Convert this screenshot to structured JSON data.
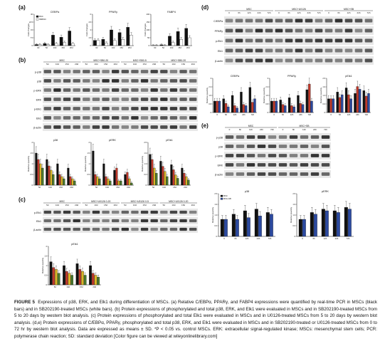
{
  "panels": {
    "a": {
      "label": "(a)",
      "charts": [
        {
          "title": "CEBPa",
          "ylabel": "Fold changes",
          "categories": [
            "0d",
            "5d",
            "10d",
            "15d",
            "20d"
          ],
          "legend": [
            "MSC",
            "SB/MSC"
          ],
          "ylim": [
            0,
            30
          ]
        },
        {
          "title": "PPARy",
          "ylabel": "Fold changes",
          "categories": [
            "0d",
            "5d",
            "10d",
            "15d",
            "20d"
          ],
          "ylim": [
            0,
            6
          ]
        },
        {
          "title": "FABP4",
          "ylabel": "Fold changes",
          "categories": [
            "0d",
            "5d",
            "10d",
            "15d",
            "20d"
          ],
          "ylim": [
            0,
            200
          ]
        }
      ]
    },
    "b": {
      "label": "(b)",
      "groups": [
        "MSC",
        "MSC+SB0-20",
        "MSC+SB0-5",
        "MSC+SB0-20"
      ],
      "days": [
        "5d",
        "10d",
        "15d",
        "20d"
      ],
      "blots": [
        "p-p38",
        "p38",
        "p-ERK",
        "ERK",
        "p-Elk1",
        "Elk1",
        "β-actin"
      ],
      "quant_titles": [
        "p38",
        "pERK",
        "pElk1"
      ],
      "ylabel": "Relative quantity"
    },
    "c": {
      "label": "(c)",
      "groups": [
        "MSC",
        "MSC+U0126 0-20",
        "MSC+U0126 0-5",
        "MSC+U0126 0-20"
      ],
      "days": [
        "5d",
        "10d",
        "15d",
        "20d"
      ],
      "blots": [
        "p-Elk1",
        "Elk1",
        "β-actin"
      ],
      "quant_title": "pElk1",
      "ylabel": "Relative quantity"
    },
    "d": {
      "label": "(d)",
      "groups": [
        "MSC",
        "MSC+U0126",
        "MSC+SB"
      ],
      "times": [
        "0",
        "6h",
        "12h",
        "24h",
        "72h"
      ],
      "blots": [
        "C/EBPa",
        "PPARy",
        "p-Elk1",
        "Elk1",
        "β-actin"
      ],
      "quant_titles": [
        "CEBPa",
        "PPARy",
        "pElk1"
      ],
      "ylabel": "Relative quantity"
    },
    "e": {
      "label": "(e)",
      "groups": [
        "MSC",
        "MSC+SB"
      ],
      "times": [
        "0",
        "6h",
        "12h",
        "24h",
        "72h"
      ],
      "blots": [
        "p-p38",
        "p38",
        "p-ERK",
        "ERK",
        "β-actin"
      ],
      "quant_titles": [
        "p38",
        "pERK"
      ],
      "legend": [
        "MSC",
        "MSC+SB"
      ],
      "ylabel": "Relative quantity"
    }
  },
  "chart_data": [
    {
      "type": "bar",
      "title": "CEBPa",
      "categories": [
        "0d",
        "5d",
        "10d",
        "15d",
        "20d"
      ],
      "series": [
        {
          "name": "MSC",
          "values": [
            1,
            2,
            10,
            8,
            14
          ]
        },
        {
          "name": "SB/MSC",
          "values": [
            1,
            1,
            2,
            3,
            2
          ]
        }
      ],
      "ylim": [
        0,
        30
      ]
    },
    {
      "type": "bar",
      "title": "PPARy",
      "categories": [
        "0d",
        "5d",
        "10d",
        "15d",
        "20d"
      ],
      "series": [
        {
          "name": "MSC",
          "values": [
            1,
            1.2,
            3,
            2.5,
            3.5
          ]
        },
        {
          "name": "SB/MSC",
          "values": [
            1,
            0.5,
            1,
            1.2,
            2
          ]
        }
      ],
      "ylim": [
        0,
        6
      ]
    },
    {
      "type": "bar",
      "title": "FABP4",
      "categories": [
        "0d",
        "5d",
        "10d",
        "15d",
        "20d"
      ],
      "series": [
        {
          "name": "MSC",
          "values": [
            1,
            5,
            60,
            90,
            110
          ]
        },
        {
          "name": "SB/MSC",
          "values": [
            1,
            2,
            20,
            40,
            50
          ]
        }
      ],
      "ylim": [
        0,
        200
      ]
    },
    {
      "type": "bar",
      "title": "p38",
      "categories": [
        "5d",
        "10d",
        "15d",
        "20d"
      ],
      "series": [
        {
          "values": [
            1.5,
            1.2,
            1.0,
            0.8
          ]
        },
        {
          "values": [
            1.2,
            0.9,
            0.5,
            0.4
          ]
        },
        {
          "values": [
            1.0,
            0.7,
            0.4,
            0.3
          ]
        },
        {
          "values": [
            0.8,
            0.5,
            0.3,
            0.2
          ]
        }
      ],
      "ylim": [
        0,
        2
      ]
    },
    {
      "type": "bar",
      "title": "pERK",
      "categories": [
        "5d",
        "10d",
        "15d",
        "20d"
      ],
      "series": [
        {
          "values": [
            1.6,
            1.0,
            0.7,
            0.5
          ]
        },
        {
          "values": [
            0.5,
            0.4,
            0.8,
            0.6
          ]
        },
        {
          "values": [
            0.4,
            0.3,
            0.2,
            0.3
          ]
        },
        {
          "values": [
            0.3,
            0.2,
            0.2,
            0.1
          ]
        }
      ],
      "ylim": [
        0,
        2
      ]
    },
    {
      "type": "bar",
      "title": "pElk1",
      "categories": [
        "5d",
        "10d",
        "15d",
        "20d"
      ],
      "series": [
        {
          "values": [
            1.8,
            1.4,
            1.2,
            1.0
          ]
        },
        {
          "values": [
            1.5,
            1.1,
            0.9,
            0.7
          ]
        },
        {
          "values": [
            1.0,
            0.8,
            0.6,
            0.5
          ]
        },
        {
          "values": [
            0.7,
            0.5,
            0.4,
            0.3
          ]
        }
      ],
      "ylim": [
        0,
        2.5
      ]
    },
    {
      "type": "bar",
      "title": "pElk1",
      "categories": [
        "5d",
        "10d",
        "15d",
        "20d"
      ],
      "series": [
        {
          "values": [
            1.2,
            1.0,
            1.1,
            1.0
          ]
        },
        {
          "values": [
            0.9,
            0.7,
            0.8,
            0.6
          ]
        },
        {
          "values": [
            0.8,
            0.6,
            0.7,
            0.5
          ]
        },
        {
          "values": [
            0.6,
            0.5,
            0.5,
            0.4
          ]
        }
      ],
      "ylim": [
        0,
        2
      ]
    },
    {
      "type": "bar",
      "title": "CEBPa",
      "categories": [
        "0",
        "6h",
        "12h",
        "24h",
        "72h"
      ],
      "series": [
        {
          "values": [
            1,
            1.2,
            1.5,
            1.8,
            2.2
          ]
        },
        {
          "values": [
            1,
            0.8,
            0.6,
            0.7,
            0.9
          ]
        },
        {
          "values": [
            1,
            0.5,
            0.4,
            0.6,
            1.2
          ]
        }
      ],
      "ylim": [
        0,
        3
      ]
    },
    {
      "type": "bar",
      "title": "PPARy",
      "categories": [
        "0",
        "6h",
        "12h",
        "24h",
        "72h"
      ],
      "series": [
        {
          "values": [
            1,
            1.1,
            1.3,
            1.5,
            2.0
          ]
        },
        {
          "values": [
            1,
            0.7,
            0.6,
            0.8,
            2.5
          ]
        },
        {
          "values": [
            1,
            0.6,
            0.5,
            0.7,
            1.0
          ]
        }
      ],
      "ylim": [
        0,
        3
      ]
    },
    {
      "type": "bar",
      "title": "pElk1",
      "categories": [
        "0",
        "6h",
        "12h",
        "24h",
        "72h"
      ],
      "series": [
        {
          "values": [
            1,
            1.5,
            1.8,
            1.4,
            1.6
          ]
        },
        {
          "values": [
            1,
            1.1,
            1.3,
            1.9,
            1.2
          ]
        },
        {
          "values": [
            1,
            1.3,
            1.0,
            1.7,
            1.4
          ]
        }
      ],
      "ylim": [
        0,
        2.5
      ]
    },
    {
      "type": "bar",
      "title": "p38",
      "categories": [
        "0",
        "6h",
        "12h",
        "24h",
        "72h"
      ],
      "series": [
        {
          "name": "MSC",
          "values": [
            1,
            1.3,
            1.5,
            1.6,
            1.4
          ]
        },
        {
          "name": "MSC+SB",
          "values": [
            1,
            1.0,
            1.1,
            1.2,
            1.3
          ]
        }
      ],
      "ylim": [
        0,
        2.5
      ]
    },
    {
      "type": "bar",
      "title": "pERK",
      "categories": [
        "0",
        "6h",
        "12h",
        "24h",
        "72h"
      ],
      "series": [
        {
          "name": "MSC",
          "values": [
            1,
            1.4,
            1.6,
            1.5,
            1.7
          ]
        },
        {
          "name": "MSC+SB",
          "values": [
            1,
            1.3,
            1.5,
            1.4,
            1.6
          ]
        }
      ],
      "ylim": [
        0,
        2.5
      ]
    }
  ],
  "colors": {
    "black": "#111111",
    "red": "#c0392b",
    "blue": "#2c4aa0",
    "yellow": "#d9b526",
    "gray": "#888888",
    "green": "#4b7a2e"
  },
  "caption": {
    "label": "FIGURE 5",
    "text": "Expressions of p38, ERK, and Elk1 during differentiation of MSCs. (a) Relative C/EBPα, PPARγ, and FABP4 expressions were quantified by real-time PCR in MSCs (black bars) and in SB202190-treated MSCs (white bars). (b) Protein expressions of phosphorylated and total p38, ERK, and Elk1 were evaluated in MSCs and in SB202190-treated MSCs from 5 to 20 days by western blot analysis. (c) Protein expressions of phosphorylated and total Elk1 were evaluated in MSCs and in U0126-treated MSCs from 5 to 20 days by western blot analysis. (d,e) Protein expressions of C/EBPα, PPARγ, phosphorylated and total p38, ERK, and Elk1 were evaluated in MSCs and in SB202190-treated or U0126-treated MSCs from 0 to 72 hr by western blot analysis. Data are expressed as means ± SD. *P < 0.05 vs. control MSCs. ERK: extracellular signal-regulated kinase; MSCs: mesenchymal stem cells; PCR: polymerase chain reaction; SD: standard deviation [Color figure can be viewed at wileyonlinelibrary.com]"
  }
}
